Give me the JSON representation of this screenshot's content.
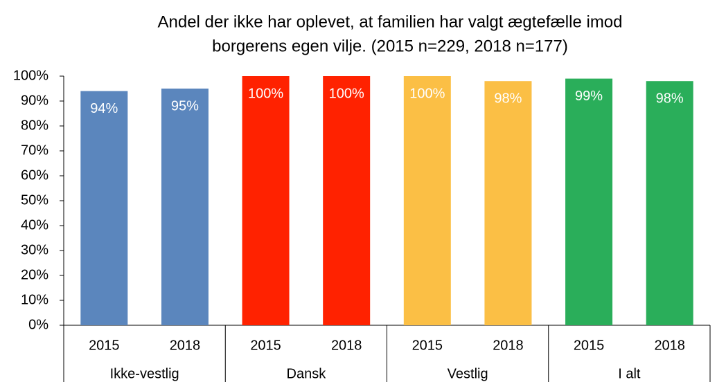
{
  "chart_data": {
    "type": "bar",
    "title_lines": [
      "Andel der ikke har oplevet, at familien har valgt ægtefælle imod",
      "borgerens egen vilje. (2015 n=229, 2018 n=177)"
    ],
    "categories": [
      "2015",
      "2018",
      "2015",
      "2018",
      "2015",
      "2018",
      "2015",
      "2018"
    ],
    "groups": [
      {
        "name": "Ikke-vestlig",
        "color": "#5b86bd"
      },
      {
        "name": "Dansk",
        "color": "#ff2200"
      },
      {
        "name": "Vestlig",
        "color": "#fbbf45"
      },
      {
        "name": "I alt",
        "color": "#2aae5a"
      }
    ],
    "values": [
      94,
      95,
      100,
      100,
      100,
      98,
      99,
      98
    ],
    "value_labels": [
      "94%",
      "95%",
      "100%",
      "100%",
      "100%",
      "98%",
      "99%",
      "98%"
    ],
    "ylim": [
      0,
      100
    ],
    "yticks": [
      {
        "value": 0,
        "label": "0%"
      },
      {
        "value": 10,
        "label": "10%"
      },
      {
        "value": 20,
        "label": "20%"
      },
      {
        "value": 30,
        "label": "30%"
      },
      {
        "value": 40,
        "label": "40%"
      },
      {
        "value": 50,
        "label": "50%"
      },
      {
        "value": 60,
        "label": "60%"
      },
      {
        "value": 70,
        "label": "70%"
      },
      {
        "value": 80,
        "label": "80%"
      },
      {
        "value": 90,
        "label": "90%"
      },
      {
        "value": 100,
        "label": "100%"
      }
    ],
    "grid": false
  }
}
